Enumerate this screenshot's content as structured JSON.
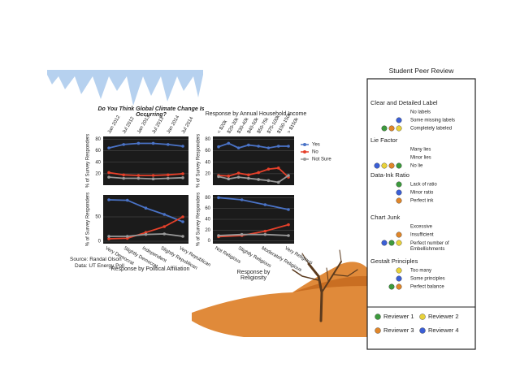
{
  "chart_data": [
    {
      "type": "line",
      "title": "Do You Think Global Climate Change Is Occurring?",
      "ylabel": "% of Survey Responders",
      "categories": [
        "Jan 2012",
        "Jul 2012",
        "Jan 2013",
        "Jul 2013",
        "Jan 2014",
        "Jul 2014"
      ],
      "series": [
        {
          "name": "Yes",
          "color": "#4a73c7",
          "values": [
            65,
            71,
            73,
            73,
            71,
            68
          ]
        },
        {
          "name": "No",
          "color": "#e5402a",
          "values": [
            22,
            18,
            17,
            17,
            18,
            20
          ]
        },
        {
          "name": "Not Sure",
          "color": "#9a9a9a",
          "values": [
            14,
            12,
            12,
            11,
            12,
            13
          ]
        }
      ],
      "ylim": [
        0,
        85
      ],
      "yticks": [
        20,
        40,
        60,
        80
      ],
      "grid": true
    },
    {
      "type": "line",
      "title": "Response by Annual Household Income",
      "ylabel": "% of Survey Responders",
      "categories": [
        "< $20k",
        "$20-30k",
        "$30-40k",
        "$40-50k",
        "$50-75k",
        "$75-100k",
        "$100-150k",
        "> $150k"
      ],
      "series": [
        {
          "name": "Yes",
          "color": "#4a73c7",
          "values": [
            67,
            73,
            65,
            70,
            68,
            65,
            68,
            68
          ]
        },
        {
          "name": "No",
          "color": "#e5402a",
          "values": [
            17,
            16,
            21,
            18,
            22,
            28,
            30,
            14
          ]
        },
        {
          "name": "Not Sure",
          "color": "#9a9a9a",
          "values": [
            15,
            11,
            14,
            12,
            10,
            8,
            5,
            17
          ]
        }
      ],
      "ylim": [
        0,
        85
      ],
      "yticks": [
        20,
        40,
        60,
        80
      ],
      "grid": true,
      "legend": "right"
    },
    {
      "type": "line",
      "title": "Response by Political Affiliation",
      "ylabel": "% of Survey Responders",
      "categories": [
        "Very Democrat",
        "Slightly Democrat",
        "Independent",
        "Slightly Republican",
        "Very Republican"
      ],
      "series": [
        {
          "name": "Yes",
          "color": "#4a73c7",
          "values": [
            85,
            84,
            68,
            55,
            40
          ]
        },
        {
          "name": "No",
          "color": "#e5402a",
          "values": [
            5,
            6,
            18,
            30,
            50
          ]
        },
        {
          "name": "Not Sure",
          "color": "#9a9a9a",
          "values": [
            10,
            10,
            14,
            15,
            10
          ]
        }
      ],
      "ylim": [
        -5,
        95
      ],
      "yticks": [
        0,
        50
      ],
      "grid": true
    },
    {
      "type": "line",
      "title": "Response by Religiosity",
      "ylabel": "% of Survey Responders",
      "categories": [
        "Not Religious",
        "Slightly Religious",
        "Moderately Religious",
        "Very Religious"
      ],
      "series": [
        {
          "name": "Yes",
          "color": "#4a73c7",
          "values": [
            80,
            76,
            67,
            58
          ]
        },
        {
          "name": "No",
          "color": "#e5402a",
          "values": [
            8,
            10,
            18,
            30
          ]
        },
        {
          "name": "Not Sure",
          "color": "#9a9a9a",
          "values": [
            10,
            12,
            12,
            10
          ]
        }
      ],
      "ylim": [
        -5,
        85
      ],
      "yticks": [
        0,
        20,
        40,
        60,
        80
      ],
      "grid": true
    }
  ],
  "source": [
    "Source: Randal Olson",
    "Data: UT Energy Poll"
  ],
  "review": {
    "title": "Student Peer Review",
    "reviewers": [
      {
        "name": "Reviewer 1",
        "color": "#3d9a3d"
      },
      {
        "name": "Reviewer 2",
        "color": "#e8d23a"
      },
      {
        "name": "Reviewer 3",
        "color": "#e0862a"
      },
      {
        "name": "Reviewer 4",
        "color": "#3b5fd6"
      }
    ],
    "sections": [
      {
        "heading": "Clear and Detailed Label",
        "options": [
          {
            "label": "No labels",
            "reviewers": []
          },
          {
            "label": "Some missing labels",
            "reviewers": [
              3
            ]
          },
          {
            "label": "Completely labeled",
            "reviewers": [
              0,
              2,
              1
            ]
          }
        ]
      },
      {
        "heading": "Lie Factor",
        "options": [
          {
            "label": "Many lies",
            "reviewers": []
          },
          {
            "label": "Minor lies",
            "reviewers": []
          },
          {
            "label": "No lie",
            "reviewers": [
              3,
              1,
              2,
              0
            ]
          }
        ]
      },
      {
        "heading": "Data-Ink Ratio",
        "options": [
          {
            "label": "Lack of ratio",
            "reviewers": [
              0
            ]
          },
          {
            "label": "Minor ratio",
            "reviewers": [
              3
            ]
          },
          {
            "label": "Perfect ink",
            "reviewers": [
              2
            ]
          }
        ]
      },
      {
        "heading": "Chart Junk",
        "options": [
          {
            "label": "Excessive",
            "reviewers": []
          },
          {
            "label": "Insufficient",
            "reviewers": [
              2
            ]
          },
          {
            "label": "Perfect number of Embellishments",
            "reviewers": [
              3,
              0,
              1
            ]
          }
        ]
      },
      {
        "heading": "Gestalt Principles",
        "options": [
          {
            "label": "Too many",
            "reviewers": [
              1
            ]
          },
          {
            "label": "Some principles",
            "reviewers": [
              3
            ]
          },
          {
            "label": "Perfect balance",
            "reviewers": [
              0,
              2
            ]
          }
        ]
      }
    ]
  }
}
